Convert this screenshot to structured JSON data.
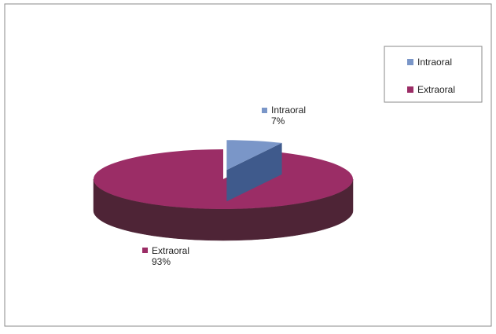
{
  "chart_data": {
    "type": "pie",
    "style": "3d-exploded",
    "slices": [
      {
        "label": "Intraoral",
        "value": 7,
        "value_label": "7%",
        "color": "#7A96C8",
        "side_color": "#3F5A8C"
      },
      {
        "label": "Extraoral",
        "value": 93,
        "value_label": "93%",
        "color": "#9B2D66",
        "side_color": "#4E2436"
      }
    ],
    "legend": {
      "placement": "top-right",
      "items": [
        {
          "label": "Intraoral",
          "color": "#7A96C8"
        },
        {
          "label": "Extraoral",
          "color": "#9B2D66"
        }
      ]
    }
  }
}
